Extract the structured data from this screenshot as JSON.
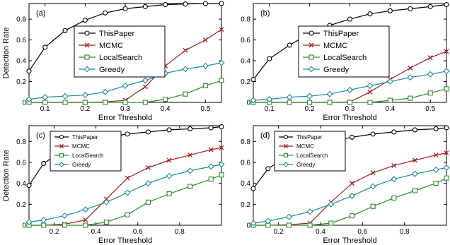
{
  "chart_data": [
    {
      "type": "line",
      "panel_label": "(a)",
      "xlabel": "Error Threshold",
      "ylabel": "Detection Rate",
      "xlim": [
        0.06,
        0.54
      ],
      "ylim": [
        0,
        0.95
      ],
      "xticks": [
        0.1,
        0.2,
        0.3,
        0.4,
        0.5
      ],
      "yticks": [
        0,
        0.2,
        0.4,
        0.6,
        0.8
      ],
      "xtick_labels": [
        "0.1",
        "0.2",
        "0.3",
        "0.4",
        "0.5"
      ],
      "ytick_labels": [
        "0",
        "0.2",
        "0.4",
        "0.6",
        "0.8"
      ],
      "grid": false,
      "legend_placement": "center",
      "legend_size": "large",
      "series": [
        {
          "name": "ThisPaper",
          "color": "#000000",
          "marker": "circle",
          "x": [
            0.06,
            0.1,
            0.15,
            0.2,
            0.25,
            0.3,
            0.35,
            0.4,
            0.45,
            0.5,
            0.54
          ],
          "y": [
            0.3,
            0.53,
            0.69,
            0.79,
            0.86,
            0.9,
            0.92,
            0.94,
            0.945,
            0.95,
            0.95
          ]
        },
        {
          "name": "MCMC",
          "color": "#a11f1f",
          "marker": "x",
          "x": [
            0.06,
            0.1,
            0.15,
            0.2,
            0.25,
            0.3,
            0.35,
            0.4,
            0.45,
            0.5,
            0.54
          ],
          "y": [
            0,
            0,
            0,
            0,
            0.005,
            0.02,
            0.15,
            0.35,
            0.5,
            0.6,
            0.7
          ]
        },
        {
          "name": "LocalSearch",
          "color": "#2e8a2e",
          "marker": "square",
          "x": [
            0.06,
            0.1,
            0.15,
            0.2,
            0.25,
            0.3,
            0.35,
            0.4,
            0.45,
            0.5,
            0.54
          ],
          "y": [
            0,
            0,
            0,
            0,
            0,
            0,
            0,
            0.03,
            0.08,
            0.16,
            0.21
          ]
        },
        {
          "name": "Greedy",
          "color": "#1a8a9a",
          "marker": "diamond",
          "x": [
            0.06,
            0.1,
            0.15,
            0.2,
            0.25,
            0.3,
            0.35,
            0.4,
            0.45,
            0.5,
            0.54
          ],
          "y": [
            0.03,
            0.05,
            0.06,
            0.07,
            0.1,
            0.16,
            0.21,
            0.28,
            0.32,
            0.35,
            0.38
          ]
        }
      ]
    },
    {
      "type": "line",
      "panel_label": "(b)",
      "xlabel": "Error Threshold",
      "ylabel": "",
      "xlim": [
        0.06,
        0.54
      ],
      "ylim": [
        0,
        0.95
      ],
      "xticks": [
        0.1,
        0.2,
        0.3,
        0.4,
        0.5
      ],
      "yticks": [
        0,
        0.2,
        0.4,
        0.6,
        0.8
      ],
      "xtick_labels": [
        "0.1",
        "0.2",
        "0.3",
        "0.4",
        "0.5"
      ],
      "ytick_labels": [
        "0",
        "0.2",
        "0.4",
        "0.6",
        "0.8"
      ],
      "grid": false,
      "legend_placement": "center",
      "legend_size": "large",
      "series": [
        {
          "name": "ThisPaper",
          "color": "#000000",
          "marker": "circle",
          "x": [
            0.06,
            0.1,
            0.15,
            0.2,
            0.25,
            0.3,
            0.35,
            0.4,
            0.45,
            0.5,
            0.54
          ],
          "y": [
            0.22,
            0.42,
            0.55,
            0.66,
            0.74,
            0.8,
            0.85,
            0.88,
            0.9,
            0.92,
            0.94
          ]
        },
        {
          "name": "MCMC",
          "color": "#a11f1f",
          "marker": "x",
          "x": [
            0.06,
            0.1,
            0.15,
            0.2,
            0.25,
            0.3,
            0.35,
            0.4,
            0.45,
            0.5,
            0.54
          ],
          "y": [
            0,
            0,
            0,
            0,
            0,
            0.005,
            0.1,
            0.22,
            0.33,
            0.43,
            0.49
          ]
        },
        {
          "name": "LocalSearch",
          "color": "#2e8a2e",
          "marker": "square",
          "x": [
            0.06,
            0.1,
            0.15,
            0.2,
            0.25,
            0.3,
            0.35,
            0.4,
            0.45,
            0.5,
            0.54
          ],
          "y": [
            0,
            0,
            0,
            0,
            0,
            0,
            0,
            0.02,
            0.04,
            0.09,
            0.13
          ]
        },
        {
          "name": "Greedy",
          "color": "#1a8a9a",
          "marker": "diamond",
          "x": [
            0.06,
            0.1,
            0.15,
            0.2,
            0.25,
            0.3,
            0.35,
            0.4,
            0.45,
            0.5,
            0.54
          ],
          "y": [
            0.02,
            0.03,
            0.05,
            0.06,
            0.08,
            0.12,
            0.16,
            0.2,
            0.24,
            0.27,
            0.3
          ]
        }
      ]
    },
    {
      "type": "line",
      "panel_label": "(c)",
      "xlabel": "Error Threshold",
      "ylabel": "Detection Rate",
      "xlim": [
        0.08,
        1.0
      ],
      "ylim": [
        0,
        0.95
      ],
      "xticks": [
        0.2,
        0.4,
        0.6,
        0.8
      ],
      "yticks": [
        0,
        0.2,
        0.4,
        0.6,
        0.8
      ],
      "xtick_labels": [
        "0.2",
        "0.4",
        "0.6",
        "0.8"
      ],
      "ytick_labels": [
        "0",
        "0.2",
        "0.4",
        "0.6",
        "0.8"
      ],
      "grid": false,
      "legend_placement": "top-left",
      "legend_size": "small",
      "series": [
        {
          "name": "ThisPaper",
          "color": "#000000",
          "marker": "circle",
          "x": [
            0.08,
            0.15,
            0.25,
            0.35,
            0.45,
            0.55,
            0.65,
            0.75,
            0.85,
            0.95,
            1.0
          ],
          "y": [
            0.38,
            0.59,
            0.72,
            0.79,
            0.84,
            0.87,
            0.89,
            0.91,
            0.92,
            0.93,
            0.94
          ]
        },
        {
          "name": "MCMC",
          "color": "#a11f1f",
          "marker": "x",
          "x": [
            0.08,
            0.15,
            0.25,
            0.35,
            0.45,
            0.55,
            0.65,
            0.75,
            0.85,
            0.95,
            1.0
          ],
          "y": [
            0,
            0,
            0.01,
            0.05,
            0.25,
            0.45,
            0.55,
            0.62,
            0.67,
            0.72,
            0.74
          ]
        },
        {
          "name": "LocalSearch",
          "color": "#2e8a2e",
          "marker": "square",
          "x": [
            0.08,
            0.15,
            0.25,
            0.35,
            0.45,
            0.55,
            0.65,
            0.75,
            0.85,
            0.95,
            1.0
          ],
          "y": [
            0,
            0,
            0,
            0,
            0.03,
            0.1,
            0.22,
            0.3,
            0.37,
            0.44,
            0.48
          ]
        },
        {
          "name": "Greedy",
          "color": "#1a8a9a",
          "marker": "diamond",
          "x": [
            0.08,
            0.15,
            0.25,
            0.35,
            0.45,
            0.55,
            0.65,
            0.75,
            0.85,
            0.95,
            1.0
          ],
          "y": [
            0.03,
            0.05,
            0.09,
            0.15,
            0.22,
            0.31,
            0.4,
            0.47,
            0.52,
            0.56,
            0.58
          ]
        }
      ]
    },
    {
      "type": "line",
      "panel_label": "(d)",
      "xlabel": "Error Threshold",
      "ylabel": "",
      "xlim": [
        0.08,
        1.0
      ],
      "ylim": [
        0,
        0.95
      ],
      "xticks": [
        0.2,
        0.4,
        0.6,
        0.8
      ],
      "yticks": [
        0,
        0.2,
        0.4,
        0.6,
        0.8
      ],
      "xtick_labels": [
        "0.2",
        "0.4",
        "0.6",
        "0.8"
      ],
      "ytick_labels": [
        "0",
        "0.2",
        "0.4",
        "0.6",
        "0.8"
      ],
      "grid": false,
      "legend_placement": "top-left",
      "legend_size": "small",
      "series": [
        {
          "name": "ThisPaper",
          "color": "#000000",
          "marker": "circle",
          "x": [
            0.08,
            0.15,
            0.25,
            0.35,
            0.45,
            0.55,
            0.65,
            0.75,
            0.85,
            0.95,
            1.0
          ],
          "y": [
            0.35,
            0.54,
            0.67,
            0.75,
            0.8,
            0.84,
            0.87,
            0.89,
            0.91,
            0.92,
            0.93
          ]
        },
        {
          "name": "MCMC",
          "color": "#a11f1f",
          "marker": "x",
          "x": [
            0.08,
            0.15,
            0.25,
            0.35,
            0.45,
            0.55,
            0.65,
            0.75,
            0.85,
            0.95,
            1.0
          ],
          "y": [
            0,
            0,
            0.005,
            0.02,
            0.22,
            0.4,
            0.5,
            0.57,
            0.62,
            0.67,
            0.69
          ]
        },
        {
          "name": "LocalSearch",
          "color": "#2e8a2e",
          "marker": "square",
          "x": [
            0.08,
            0.15,
            0.25,
            0.35,
            0.45,
            0.55,
            0.65,
            0.75,
            0.85,
            0.95,
            1.0
          ],
          "y": [
            0,
            0,
            0,
            0,
            0.02,
            0.09,
            0.18,
            0.26,
            0.33,
            0.4,
            0.45
          ]
        },
        {
          "name": "Greedy",
          "color": "#1a8a9a",
          "marker": "diamond",
          "x": [
            0.08,
            0.15,
            0.25,
            0.35,
            0.45,
            0.55,
            0.65,
            0.75,
            0.85,
            0.95,
            1.0
          ],
          "y": [
            0.02,
            0.04,
            0.08,
            0.13,
            0.2,
            0.28,
            0.37,
            0.44,
            0.49,
            0.53,
            0.55
          ]
        }
      ]
    }
  ]
}
